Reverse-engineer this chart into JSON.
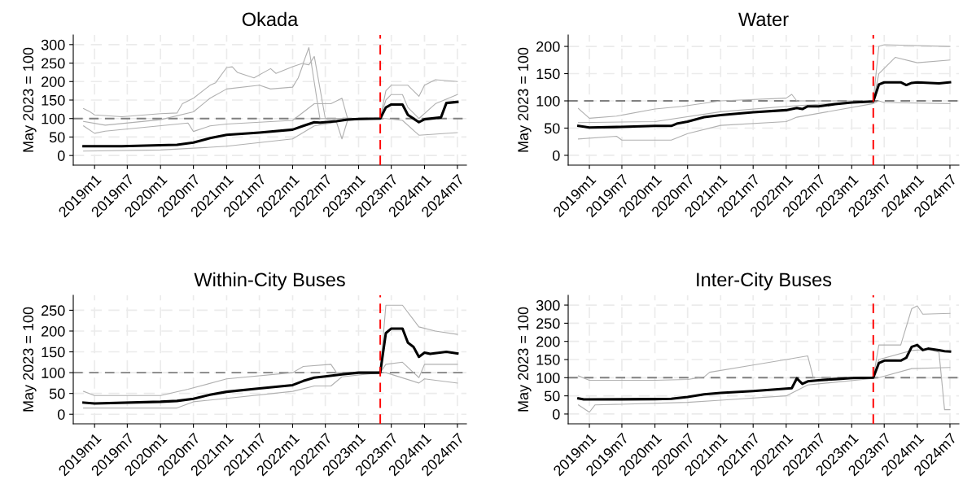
{
  "chart_data": [
    {
      "type": "line",
      "title": "Okada",
      "ylabel": "May 2023 = 100",
      "xlim": [
        "2018-09-05",
        "2024-08-20"
      ],
      "ylim": [
        -26,
        326
      ],
      "yticks": [
        0,
        50,
        100,
        150,
        200,
        250,
        300
      ],
      "xticks": [
        {
          "value": "2019-01",
          "label": "2019m1"
        },
        {
          "value": "2019-07",
          "label": "2019m7"
        },
        {
          "value": "2020-01",
          "label": "2020m1"
        },
        {
          "value": "2020-07",
          "label": "2020m7"
        },
        {
          "value": "2021-01",
          "label": "2021m1"
        },
        {
          "value": "2021-07",
          "label": "2021m7"
        },
        {
          "value": "2022-01",
          "label": "2022m1"
        },
        {
          "value": "2022-07",
          "label": "2022m7"
        },
        {
          "value": "2023-01",
          "label": "2023m1"
        },
        {
          "value": "2023-07",
          "label": "2023m7"
        },
        {
          "value": "2024-01",
          "label": "2024m1"
        },
        {
          "value": "2024-07",
          "label": "2024m7"
        }
      ],
      "grid": true,
      "line_style": "solid",
      "marker": "none",
      "ref_lines": [
        {
          "axis": "y",
          "value": 100,
          "color": "#808080",
          "line_style": "dashed"
        },
        {
          "axis": "x",
          "value": "2023-05",
          "color": "#ff0000",
          "line_style": "dashed"
        }
      ],
      "series": [
        {
          "color": "#b0b0b0",
          "x": [
            "2018-11",
            "2018-12",
            "2019-01",
            "2019-06",
            "2020-01",
            "2020-04",
            "2020-05",
            "2020-07",
            "2020-10",
            "2020-11",
            "2021-01",
            "2021-02",
            "2021-03",
            "2021-06",
            "2021-09",
            "2021-10",
            "2022-01",
            "2022-03",
            "2022-04",
            "2022-06",
            "2023-05",
            "2023-06",
            "2023-07",
            "2023-10",
            "2023-12",
            "2024-01",
            "2024-03",
            "2024-07"
          ],
          "values": [
            127,
            120,
            110,
            105,
            113,
            115,
            140,
            155,
            190,
            197,
            238,
            240,
            225,
            210,
            235,
            222,
            240,
            250,
            292,
            100,
            100,
            175,
            190,
            190,
            160,
            190,
            205,
            200
          ]
        },
        {
          "color": "#b0b0b0",
          "x": [
            "2018-11",
            "2019-03",
            "2020-01",
            "2020-07",
            "2020-10",
            "2021-01",
            "2021-07",
            "2021-09",
            "2022-01",
            "2022-02",
            "2022-03",
            "2022-04",
            "2022-05",
            "2022-07",
            "2023-05"
          ],
          "values": [
            92,
            82,
            97,
            118,
            155,
            180,
            190,
            180,
            185,
            210,
            248,
            245,
            268,
            100,
            100
          ]
        },
        {
          "color": "#b0b0b0",
          "x": [
            "2018-11",
            "2019-01",
            "2019-03",
            "2020-06",
            "2020-07",
            "2020-10",
            "2021-01",
            "2022-01",
            "2022-05",
            "2022-08",
            "2022-10",
            "2022-11",
            "2023-05",
            "2023-06",
            "2023-07",
            "2023-09",
            "2023-10",
            "2023-12",
            "2024-03",
            "2024-07"
          ],
          "values": [
            80,
            60,
            66,
            88,
            65,
            80,
            85,
            95,
            140,
            140,
            155,
            100,
            100,
            150,
            165,
            165,
            130,
            100,
            140,
            165
          ]
        },
        {
          "color": "#b0b0b0",
          "x": [
            "2018-11",
            "2020-01",
            "2021-01",
            "2022-01",
            "2022-05",
            "2022-09",
            "2022-10",
            "2022-11",
            "2023-05",
            "2023-06",
            "2023-09",
            "2023-12",
            "2024-07"
          ],
          "values": [
            12,
            15,
            25,
            45,
            80,
            90,
            45,
            95,
            100,
            100,
            95,
            55,
            62
          ]
        },
        {
          "color": "#000000",
          "x": [
            "2018-11",
            "2019-06",
            "2020-01",
            "2020-04",
            "2020-07",
            "2020-10",
            "2021-01",
            "2021-07",
            "2022-01",
            "2022-03",
            "2022-05",
            "2022-06",
            "2022-09",
            "2022-11",
            "2023-01",
            "2023-05",
            "2023-06",
            "2023-07",
            "2023-09",
            "2023-10",
            "2023-12",
            "2024-01",
            "2024-04",
            "2024-05",
            "2024-07"
          ],
          "values": [
            25,
            25,
            28,
            29,
            35,
            47,
            56,
            62,
            70,
            80,
            90,
            89,
            93,
            97,
            99,
            100,
            130,
            138,
            138,
            110,
            90,
            98,
            103,
            142,
            145
          ]
        }
      ]
    },
    {
      "type": "line",
      "title": "Water",
      "ylabel": "May 2023 = 100",
      "xlim": [
        "2018-09-05",
        "2024-08-20"
      ],
      "ylim": [
        -18,
        221
      ],
      "yticks": [
        0,
        50,
        100,
        150,
        200
      ],
      "xticks": [
        {
          "value": "2019-01",
          "label": "2019m1"
        },
        {
          "value": "2019-07",
          "label": "2019m7"
        },
        {
          "value": "2020-01",
          "label": "2020m1"
        },
        {
          "value": "2020-07",
          "label": "2020m7"
        },
        {
          "value": "2021-01",
          "label": "2021m1"
        },
        {
          "value": "2021-07",
          "label": "2021m7"
        },
        {
          "value": "2022-01",
          "label": "2022m1"
        },
        {
          "value": "2022-07",
          "label": "2022m7"
        },
        {
          "value": "2023-01",
          "label": "2023m1"
        },
        {
          "value": "2023-07",
          "label": "2023m7"
        },
        {
          "value": "2024-01",
          "label": "2024m1"
        },
        {
          "value": "2024-07",
          "label": "2024m7"
        }
      ],
      "grid": true,
      "line_style": "solid",
      "marker": "none",
      "ref_lines": [
        {
          "axis": "y",
          "value": 100,
          "color": "#808080",
          "line_style": "dashed"
        },
        {
          "axis": "x",
          "value": "2023-05",
          "color": "#ff0000",
          "line_style": "dashed"
        }
      ],
      "series": [
        {
          "color": "#b0b0b0",
          "x": [
            "2018-11",
            "2019-01",
            "2019-06",
            "2020-01",
            "2020-06",
            "2021-01",
            "2022-01",
            "2022-02",
            "2022-03",
            "2023-05",
            "2023-06",
            "2023-07",
            "2024-07"
          ],
          "values": [
            86,
            68,
            72,
            85,
            90,
            100,
            105,
            112,
            100,
            100,
            200,
            203,
            200
          ]
        },
        {
          "color": "#b0b0b0",
          "x": [
            "2018-11",
            "2019-06",
            "2019-07",
            "2020-04",
            "2020-07",
            "2021-01",
            "2022-01",
            "2022-03",
            "2023-05",
            "2023-06",
            "2023-07",
            "2024-07"
          ],
          "values": [
            30,
            35,
            28,
            28,
            40,
            55,
            62,
            70,
            95,
            100,
            97,
            95
          ]
        },
        {
          "color": "#b0b0b0",
          "x": [
            "2018-11",
            "2020-01",
            "2021-01",
            "2022-01",
            "2023-05",
            "2023-06",
            "2023-09",
            "2024-01",
            "2024-07"
          ],
          "values": [
            60,
            62,
            80,
            90,
            100,
            150,
            180,
            170,
            175
          ]
        },
        {
          "color": "#000000",
          "x": [
            "2018-11",
            "2019-01",
            "2019-06",
            "2020-01",
            "2020-04",
            "2020-05",
            "2020-07",
            "2020-10",
            "2021-01",
            "2021-07",
            "2022-01",
            "2022-03",
            "2022-04",
            "2022-05",
            "2022-07",
            "2022-10",
            "2023-01",
            "2023-05",
            "2023-06",
            "2023-07",
            "2023-10",
            "2023-11",
            "2023-12",
            "2024-01",
            "2024-05",
            "2024-07"
          ],
          "values": [
            54,
            51,
            52,
            54,
            54,
            58,
            62,
            70,
            74,
            79,
            83,
            87,
            85,
            90,
            90,
            94,
            97,
            99,
            130,
            134,
            134,
            129,
            133,
            134,
            132,
            134
          ]
        }
      ]
    },
    {
      "type": "line",
      "title": "Within-City Buses",
      "ylabel": "May 2023 = 100",
      "xlim": [
        "2018-09-05",
        "2024-08-20"
      ],
      "ylim": [
        -23,
        286
      ],
      "yticks": [
        0,
        50,
        100,
        150,
        200,
        250
      ],
      "xticks": [
        {
          "value": "2019-01",
          "label": "2019m1"
        },
        {
          "value": "2019-07",
          "label": "2019m7"
        },
        {
          "value": "2020-01",
          "label": "2020m1"
        },
        {
          "value": "2020-07",
          "label": "2020m7"
        },
        {
          "value": "2021-01",
          "label": "2021m1"
        },
        {
          "value": "2021-07",
          "label": "2021m7"
        },
        {
          "value": "2022-01",
          "label": "2022m1"
        },
        {
          "value": "2022-07",
          "label": "2022m7"
        },
        {
          "value": "2023-01",
          "label": "2023m1"
        },
        {
          "value": "2023-07",
          "label": "2023m7"
        },
        {
          "value": "2024-01",
          "label": "2024m1"
        },
        {
          "value": "2024-07",
          "label": "2024m7"
        }
      ],
      "grid": true,
      "line_style": "solid",
      "marker": "none",
      "ref_lines": [
        {
          "axis": "y",
          "value": 100,
          "color": "#808080",
          "line_style": "dashed"
        },
        {
          "axis": "x",
          "value": "2023-05",
          "color": "#ff0000",
          "line_style": "dashed"
        }
      ],
      "series": [
        {
          "color": "#b0b0b0",
          "x": [
            "2018-11",
            "2019-01",
            "2020-01",
            "2020-06",
            "2021-01",
            "2022-01",
            "2022-03",
            "2022-08",
            "2022-09",
            "2023-05",
            "2023-06",
            "2023-09",
            "2023-12",
            "2024-03",
            "2024-07"
          ],
          "values": [
            55,
            45,
            45,
            60,
            85,
            100,
            115,
            120,
            100,
            100,
            262,
            262,
            210,
            200,
            192
          ]
        },
        {
          "color": "#b0b0b0",
          "x": [
            "2018-11",
            "2020-04",
            "2020-07",
            "2021-01",
            "2022-01",
            "2022-05",
            "2022-08",
            "2022-10",
            "2023-05",
            "2023-06",
            "2023-12",
            "2024-01",
            "2024-07"
          ],
          "values": [
            15,
            15,
            30,
            38,
            55,
            68,
            68,
            90,
            100,
            100,
            75,
            85,
            75
          ]
        },
        {
          "color": "#b0b0b0",
          "x": [
            "2023-05",
            "2023-06",
            "2023-09",
            "2023-12",
            "2024-01",
            "2024-07"
          ],
          "values": [
            100,
            120,
            125,
            88,
            120,
            120
          ]
        },
        {
          "color": "#000000",
          "x": [
            "2018-11",
            "2019-01",
            "2020-01",
            "2020-04",
            "2020-07",
            "2020-10",
            "2021-01",
            "2021-07",
            "2022-01",
            "2022-03",
            "2022-05",
            "2022-07",
            "2022-10",
            "2023-01",
            "2023-05",
            "2023-06",
            "2023-07",
            "2023-09",
            "2023-10",
            "2023-11",
            "2023-12",
            "2024-01",
            "2024-02",
            "2024-05",
            "2024-07"
          ],
          "values": [
            28,
            26,
            30,
            32,
            37,
            47,
            54,
            62,
            70,
            80,
            88,
            91,
            96,
            100,
            100,
            195,
            206,
            206,
            172,
            162,
            138,
            148,
            145,
            150,
            146
          ]
        }
      ]
    },
    {
      "type": "line",
      "title": "Inter-City Buses",
      "ylabel": "May 2023 = 100",
      "xlim": [
        "2018-09-05",
        "2024-08-20"
      ],
      "ylim": [
        -27,
        327
      ],
      "yticks": [
        0,
        50,
        100,
        150,
        200,
        250,
        300
      ],
      "xticks": [
        {
          "value": "2019-01",
          "label": "2019m1"
        },
        {
          "value": "2019-07",
          "label": "2019m7"
        },
        {
          "value": "2020-01",
          "label": "2020m1"
        },
        {
          "value": "2020-07",
          "label": "2020m7"
        },
        {
          "value": "2021-01",
          "label": "2021m1"
        },
        {
          "value": "2021-07",
          "label": "2021m7"
        },
        {
          "value": "2022-01",
          "label": "2022m1"
        },
        {
          "value": "2022-07",
          "label": "2022m7"
        },
        {
          "value": "2023-01",
          "label": "2023m1"
        },
        {
          "value": "2023-07",
          "label": "2023m7"
        },
        {
          "value": "2024-01",
          "label": "2024m1"
        },
        {
          "value": "2024-07",
          "label": "2024m7"
        }
      ],
      "grid": true,
      "line_style": "solid",
      "marker": "none",
      "ref_lines": [
        {
          "axis": "y",
          "value": 100,
          "color": "#808080",
          "line_style": "dashed"
        },
        {
          "axis": "x",
          "value": "2023-05",
          "color": "#ff0000",
          "line_style": "dashed"
        }
      ],
      "series": [
        {
          "color": "#b0b0b0",
          "x": [
            "2018-11",
            "2019-01",
            "2020-01",
            "2020-07",
            "2020-10",
            "2020-11",
            "2021-07",
            "2022-01",
            "2022-05",
            "2022-06",
            "2023-05",
            "2023-06",
            "2023-10",
            "2023-12",
            "2024-01",
            "2024-02",
            "2024-07"
          ],
          "values": [
            105,
            93,
            93,
            95,
            102,
            115,
            135,
            150,
            160,
            100,
            100,
            190,
            190,
            290,
            298,
            275,
            277
          ]
        },
        {
          "color": "#b0b0b0",
          "x": [
            "2018-11",
            "2019-01",
            "2019-02",
            "2020-07",
            "2021-01",
            "2022-01",
            "2022-05",
            "2023-05",
            "2023-06",
            "2023-12",
            "2024-07"
          ],
          "values": [
            25,
            5,
            25,
            32,
            38,
            50,
            80,
            98,
            100,
            125,
            128
          ]
        },
        {
          "color": "#b0b0b0",
          "x": [
            "2023-05",
            "2023-06",
            "2023-12",
            "2024-03",
            "2024-05",
            "2024-06",
            "2024-07"
          ],
          "values": [
            100,
            150,
            175,
            178,
            170,
            12,
            12
          ]
        },
        {
          "color": "#000000",
          "x": [
            "2018-11",
            "2018-12",
            "2020-01",
            "2020-04",
            "2020-07",
            "2020-10",
            "2021-01",
            "2021-07",
            "2022-01",
            "2022-02",
            "2022-03",
            "2022-04",
            "2022-05",
            "2022-07",
            "2022-10",
            "2023-01",
            "2023-05",
            "2023-06",
            "2023-07",
            "2023-10",
            "2023-11",
            "2023-12",
            "2024-01",
            "2024-02",
            "2024-03",
            "2024-05",
            "2024-06",
            "2024-07"
          ],
          "values": [
            43,
            40,
            41,
            42,
            47,
            54,
            58,
            63,
            70,
            71,
            98,
            83,
            90,
            93,
            96,
            99,
            100,
            140,
            147,
            147,
            155,
            185,
            190,
            176,
            180,
            176,
            173,
            172
          ]
        }
      ]
    }
  ]
}
